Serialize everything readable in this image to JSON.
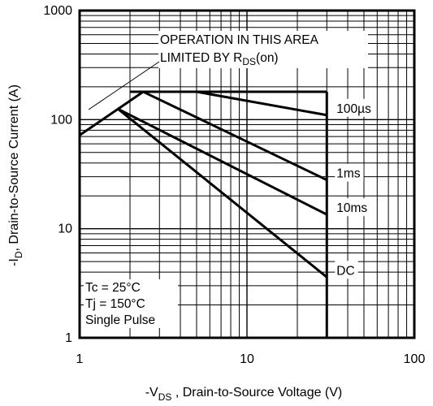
{
  "chart_data": {
    "type": "line",
    "x_scale": "log",
    "y_scale": "log",
    "xlim": [
      1,
      100
    ],
    "ylim": [
      1,
      1000
    ],
    "grid": true,
    "x_ticks": [
      "1",
      "10",
      "100"
    ],
    "y_ticks": [
      "1",
      "10",
      "100",
      "1000"
    ],
    "ylabel": {
      "sign": "-I",
      "sub": "D",
      "rest": ", Drain-to-Source Current (A)"
    },
    "xlabel": {
      "sign": "-V",
      "sub": "DS",
      "rest": " , Drain-to-Source Voltage (V)"
    },
    "annotation": {
      "line1": "OPERATION IN THIS AREA",
      "line2_prefix": "LIMITED BY R",
      "line2_sub": "DS",
      "line2_suffix": "(on)"
    },
    "conditions": [
      "Tc = 25°C",
      "Tj = 150°C",
      "Single Pulse"
    ],
    "limits": {
      "current_max": 180,
      "voltage_max": 30
    },
    "rds_on_line": {
      "x": [
        1,
        2.4
      ],
      "y": [
        72,
        180
      ]
    },
    "series": [
      {
        "name": "100µs",
        "x": [
          5,
          30
        ],
        "y": [
          180,
          110
        ]
      },
      {
        "name": "1ms",
        "x": [
          2.4,
          30
        ],
        "y": [
          180,
          28
        ]
      },
      {
        "name": "10ms",
        "x": [
          1.7,
          30
        ],
        "y": [
          125,
          13.5
        ]
      },
      {
        "name": "DC",
        "x": [
          1.7,
          30
        ],
        "y": [
          125,
          3.6
        ]
      }
    ]
  }
}
